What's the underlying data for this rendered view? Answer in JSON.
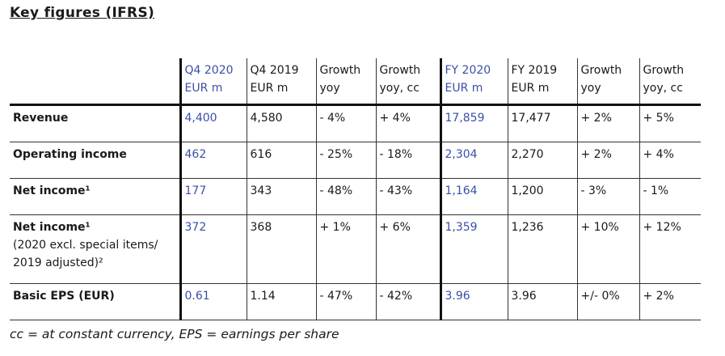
{
  "title": "Key figures (IFRS)",
  "header": [
    {
      "line1": "Q4 2020",
      "line2": "EUR m"
    },
    {
      "line1": "Q4 2019",
      "line2": "EUR m"
    },
    {
      "line1": "Growth",
      "line2": "yoy"
    },
    {
      "line1": "Growth",
      "line2": "yoy, cc"
    },
    {
      "line1": "FY 2020",
      "line2": "EUR m"
    },
    {
      "line1": "FY 2019",
      "line2": "EUR m"
    },
    {
      "line1": "Growth",
      "line2": "yoy"
    },
    {
      "line1": "Growth",
      "line2": "yoy, cc"
    }
  ],
  "rows": [
    {
      "label": "Revenue",
      "sub": "",
      "values": [
        "4,400",
        "4,580",
        "- 4%",
        "+ 4%",
        "17,859",
        "17,477",
        "+ 2%",
        "+ 5%"
      ]
    },
    {
      "label": "Operating income",
      "sub": "",
      "values": [
        "462",
        "616",
        "- 25%",
        "- 18%",
        "2,304",
        "2,270",
        "+ 2%",
        "+ 4%"
      ]
    },
    {
      "label": "Net income¹",
      "sub": "",
      "values": [
        "177",
        "343",
        "- 48%",
        "- 43%",
        "1,164",
        "1,200",
        "- 3%",
        "- 1%"
      ]
    },
    {
      "label": "Net income¹",
      "sub1": "(2020 excl. special items/",
      "sub2": "2019 adjusted)²",
      "values": [
        "372",
        "368",
        "+ 1%",
        "+ 6%",
        "1,359",
        "1,236",
        "+ 10%",
        "+ 12%"
      ]
    },
    {
      "label": "Basic EPS (EUR)",
      "sub": "",
      "values": [
        "0.61",
        "1.14",
        "- 47%",
        "- 42%",
        "3.96",
        "3.96",
        "+/- 0%",
        "+ 2%"
      ]
    }
  ],
  "footnote": "cc = at constant currency, EPS = earnings per share",
  "colors": {
    "highlight": "#3a4fa8",
    "text": "#1a1a1a",
    "rule": "#111111"
  }
}
